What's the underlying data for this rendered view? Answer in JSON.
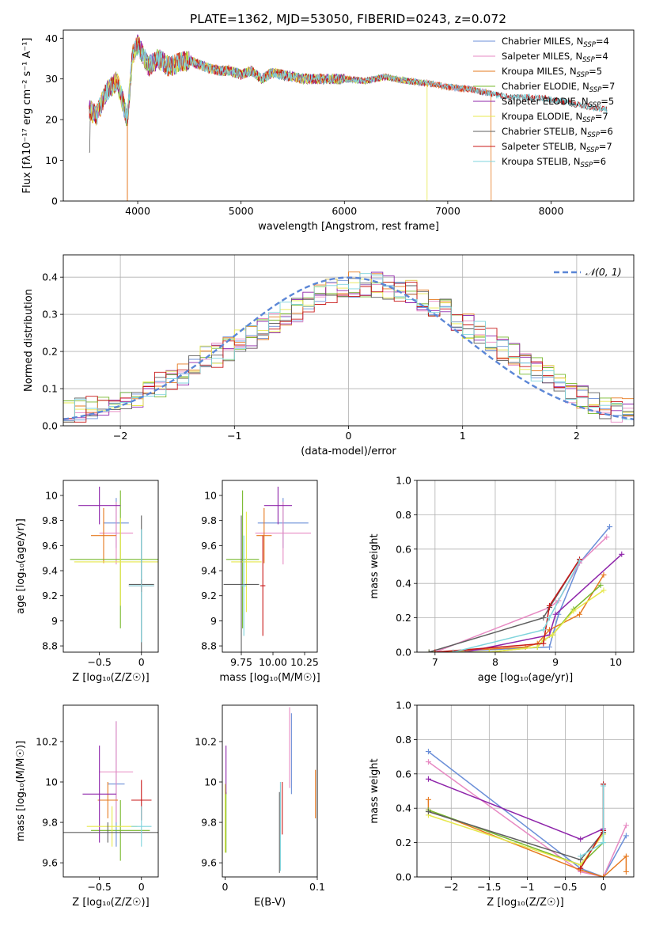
{
  "figure_title": "PLATE=1362, MJD=53050, FIBERID=0243, z=0.072",
  "colors": {
    "Chabrier MILES": "#6b8fd8",
    "Salpeter MILES": "#e78ac3",
    "Kroupa MILES": "#e6791f",
    "Chabrier ELODIE": "#77b82c",
    "Salpeter ELODIE": "#8e24aa",
    "Kroupa ELODIE": "#e7e84c",
    "Chabrier STELIB": "#5f5f5f",
    "Salpeter STELIB": "#c81818",
    "Kroupa STELIB": "#7fd4dc",
    "normal_curve": "#5b86d6"
  },
  "chart_data": [
    {
      "id": "spectrum",
      "type": "line",
      "xlabel": "wavelength [Angstrom, rest frame]",
      "ylabel": "Flux [fλ10⁻¹⁷ erg cm⁻² s⁻¹ A⁻¹]",
      "xlim": [
        3280,
        8800
      ],
      "ylim": [
        0,
        42
      ],
      "xticks": [
        4000,
        5000,
        6000,
        7000,
        8000
      ],
      "yticks": [
        0,
        10,
        20,
        30,
        40
      ],
      "grid": false,
      "legend_position": "top-right",
      "legend": [
        {
          "name": "Chabrier MILES",
          "nssp": "4"
        },
        {
          "name": "Salpeter MILES",
          "nssp": "4"
        },
        {
          "name": "Kroupa MILES",
          "nssp": "5"
        },
        {
          "name": "Chabrier ELODIE",
          "nssp": "7"
        },
        {
          "name": "Salpeter ELODIE",
          "nssp": "5"
        },
        {
          "name": "Kroupa ELODIE",
          "nssp": "7"
        },
        {
          "name": "Chabrier STELIB",
          "nssp": "6"
        },
        {
          "name": "Salpeter STELIB",
          "nssp": "7"
        },
        {
          "name": "Kroupa STELIB",
          "nssp": "6"
        }
      ],
      "data_wavelength": [
        3530,
        3600,
        3700,
        3800,
        3850,
        3900,
        3950,
        4000,
        4050,
        4100,
        4200,
        4300,
        4400,
        4500,
        4600,
        4700,
        4800,
        4900,
        5000,
        5100,
        5200,
        5300,
        5400,
        5500,
        5600,
        5800,
        6000,
        6200,
        6400,
        6600,
        6800,
        7000,
        7200,
        7400,
        7600,
        7800,
        8000,
        8200,
        8400,
        8540
      ],
      "data_flux": [
        22.5,
        21,
        27,
        29.5,
        25,
        20,
        36,
        38.5,
        36,
        33,
        35,
        33,
        34,
        34.5,
        33.5,
        32.5,
        32,
        32,
        31,
        32,
        30,
        31.5,
        31,
        30.5,
        30,
        30,
        30,
        29.5,
        30.5,
        29.5,
        29,
        28,
        27.5,
        26.5,
        25.5,
        25.5,
        25,
        24,
        23,
        22.5
      ]
    },
    {
      "id": "residuals",
      "type": "step",
      "xlabel": "(data-model)/error",
      "ylabel": "Normed distribution",
      "xlim": [
        -2.5,
        2.5
      ],
      "ylim": [
        0,
        0.46
      ],
      "xticks": [
        -2,
        -1,
        0,
        1,
        2
      ],
      "yticks": [
        0.0,
        0.1,
        0.2,
        0.3,
        0.4
      ],
      "grid": true,
      "legend_position": "top-right",
      "normal_label": "𝒩(0, 1)",
      "bin_edges_start": -2.5,
      "bin_width": 0.1,
      "reference_hist": [
        0.035,
        0.04,
        0.045,
        0.055,
        0.06,
        0.07,
        0.08,
        0.09,
        0.11,
        0.12,
        0.14,
        0.16,
        0.18,
        0.19,
        0.21,
        0.23,
        0.24,
        0.26,
        0.28,
        0.3,
        0.31,
        0.33,
        0.35,
        0.36,
        0.37,
        0.38,
        0.38,
        0.38,
        0.37,
        0.37,
        0.36,
        0.34,
        0.33,
        0.31,
        0.29,
        0.27,
        0.25,
        0.23,
        0.21,
        0.19,
        0.17,
        0.15,
        0.13,
        0.11,
        0.09,
        0.08,
        0.06,
        0.05,
        0.04,
        0.04
      ]
    },
    {
      "id": "age-vs-Z",
      "type": "errorbar",
      "xlabel": "Z [log₁₀(Z/Z☉)]",
      "ylabel": "age  [log₁₀(age/yr)]",
      "xlim": [
        -0.93,
        0.2
      ],
      "ylim": [
        8.75,
        10.12
      ],
      "xticks": [
        -0.5,
        0.0
      ],
      "yticks": [
        8.8,
        9.0,
        9.2,
        9.4,
        9.6,
        9.8,
        10.0
      ],
      "grid": false,
      "points": [
        {
          "series": "Chabrier MILES",
          "x": -0.3,
          "xerr": 0.15,
          "y": 9.78,
          "yerr": 0.2
        },
        {
          "series": "Salpeter MILES",
          "x": -0.3,
          "xerr": 0.2,
          "y": 9.7,
          "yerr": 0.25
        },
        {
          "series": "Kroupa MILES",
          "x": -0.45,
          "xerr": 0.15,
          "y": 9.68,
          "yerr": 0.22
        },
        {
          "series": "Chabrier ELODIE",
          "x": -0.25,
          "xerr": 0.6,
          "y": 9.49,
          "yerr": 0.55
        },
        {
          "series": "Salpeter ELODIE",
          "x": -0.5,
          "xerr": 0.25,
          "y": 9.92,
          "yerr": 0.15
        },
        {
          "series": "Kroupa ELODIE",
          "x": -0.25,
          "xerr": 0.55,
          "y": 9.47,
          "yerr": 0.35
        },
        {
          "series": "Chabrier STELIB",
          "x": 0.0,
          "xerr": 0.15,
          "y": 9.29,
          "yerr": 0.55
        },
        {
          "series": "Salpeter STELIB",
          "x": 0.0,
          "xerr": 0.15,
          "y": 9.28,
          "yerr": 0.05
        },
        {
          "series": "Kroupa STELIB",
          "x": 0.0,
          "xerr": 0.15,
          "y": 9.28,
          "yerr": 0.45
        }
      ]
    },
    {
      "id": "age-vs-mass",
      "type": "errorbar",
      "xlabel": "mass [log₁₀(M/M☉)]",
      "ylabel": "",
      "xlim": [
        9.6,
        10.35
      ],
      "ylim": [
        8.75,
        10.12
      ],
      "xticks": [
        9.75,
        10.0,
        10.25
      ],
      "xtick_labels": [
        "9.75",
        "10.00",
        "10.25"
      ],
      "yticks": [
        8.8,
        9.0,
        9.2,
        9.4,
        9.6,
        9.8,
        10.0
      ],
      "grid": false,
      "points": [
        {
          "series": "Chabrier MILES",
          "x": 10.08,
          "xerr": 0.2,
          "y": 9.78,
          "yerr": 0.2
        },
        {
          "series": "Salpeter MILES",
          "x": 10.08,
          "xerr": 0.22,
          "y": 9.7,
          "yerr": 0.25
        },
        {
          "series": "Kroupa MILES",
          "x": 9.93,
          "xerr": 0.06,
          "y": 9.68,
          "yerr": 0.22
        },
        {
          "series": "Chabrier ELODIE",
          "x": 9.76,
          "xerr": 0.13,
          "y": 9.49,
          "yerr": 0.55
        },
        {
          "series": "Salpeter ELODIE",
          "x": 10.04,
          "xerr": 0.11,
          "y": 9.92,
          "yerr": 0.15
        },
        {
          "series": "Kroupa ELODIE",
          "x": 9.79,
          "xerr": 0.12,
          "y": 9.47,
          "yerr": 0.4
        },
        {
          "series": "Chabrier STELIB",
          "x": 9.75,
          "xerr": 0.14,
          "y": 9.29,
          "yerr": 0.55
        },
        {
          "series": "Salpeter STELIB",
          "x": 9.92,
          "xerr": 0.02,
          "y": 9.28,
          "yerr": 0.4
        },
        {
          "series": "Kroupa STELIB",
          "x": 9.77,
          "xerr": 0.02,
          "y": 9.28,
          "yerr": 0.4
        }
      ]
    },
    {
      "id": "massweight-vs-age",
      "type": "line",
      "xlabel": "age  [log₁₀(age/yr)]",
      "ylabel": "mass weight",
      "xlim": [
        6.7,
        10.3
      ],
      "ylim": [
        0,
        1.0
      ],
      "xticks": [
        7,
        8,
        9,
        10
      ],
      "yticks": [
        0.0,
        0.2,
        0.4,
        0.6,
        0.8,
        1.0
      ],
      "grid": true,
      "series": [
        {
          "name": "Chabrier MILES",
          "x": [
            7.0,
            8.9,
            9.05,
            9.4,
            9.9
          ],
          "y": [
            0.0,
            0.03,
            0.22,
            0.52,
            0.73
          ]
        },
        {
          "name": "Salpeter MILES",
          "x": [
            7.0,
            8.9,
            9.05,
            9.4,
            9.85
          ],
          "y": [
            0.0,
            0.26,
            0.3,
            0.52,
            0.67
          ]
        },
        {
          "name": "Kroupa MILES",
          "x": [
            7.0,
            8.5,
            8.7,
            8.9,
            9.4,
            9.8
          ],
          "y": [
            0.0,
            0.03,
            0.05,
            0.13,
            0.22,
            0.45
          ]
        },
        {
          "name": "Chabrier ELODIE",
          "x": [
            6.9,
            7.9,
            8.7,
            8.8,
            8.95,
            9.3,
            9.75
          ],
          "y": [
            0.0,
            0.0,
            0.03,
            0.07,
            0.1,
            0.25,
            0.39
          ]
        },
        {
          "name": "Salpeter ELODIE",
          "x": [
            7.5,
            8.9,
            9.0,
            10.1
          ],
          "y": [
            0.0,
            0.1,
            0.22,
            0.57
          ]
        },
        {
          "name": "Kroupa ELODIE",
          "x": [
            6.9,
            7.9,
            8.7,
            8.8,
            8.95,
            9.3,
            9.8
          ],
          "y": [
            0.0,
            0.0,
            0.03,
            0.07,
            0.1,
            0.24,
            0.36
          ]
        },
        {
          "name": "Chabrier STELIB",
          "x": [
            6.9,
            8.8,
            8.9,
            9.4
          ],
          "y": [
            0.0,
            0.2,
            0.26,
            0.54
          ]
        },
        {
          "name": "Salpeter STELIB",
          "x": [
            7.0,
            8.8,
            8.9,
            9.4
          ],
          "y": [
            0.0,
            0.05,
            0.27,
            0.54
          ]
        },
        {
          "name": "Kroupa STELIB",
          "x": [
            7.3,
            8.8,
            8.9,
            9.4
          ],
          "y": [
            0.0,
            0.13,
            0.2,
            0.53
          ]
        }
      ]
    },
    {
      "id": "mass-vs-Z",
      "type": "errorbar",
      "xlabel": "Z [log₁₀(Z/Z☉)]",
      "ylabel": "mass [log₁₀(M/M☉)]",
      "xlim": [
        -0.93,
        0.2
      ],
      "ylim": [
        9.53,
        10.38
      ],
      "xticks": [
        -0.5,
        0.0
      ],
      "yticks": [
        9.6,
        9.8,
        10.0,
        10.2
      ],
      "grid": false,
      "points": [
        {
          "series": "Chabrier MILES",
          "x": -0.3,
          "xerr": 0.1,
          "y": 9.99,
          "yerr": 0.31
        },
        {
          "series": "Salpeter MILES",
          "x": -0.3,
          "xerr": 0.2,
          "y": 10.05,
          "yerr": 0.25
        },
        {
          "series": "Kroupa MILES",
          "x": -0.4,
          "xerr": 0.12,
          "y": 9.91,
          "yerr": 0.09
        },
        {
          "series": "Chabrier ELODIE",
          "x": -0.25,
          "xerr": 0.35,
          "y": 9.76,
          "yerr": 0.15
        },
        {
          "series": "Salpeter ELODIE",
          "x": -0.5,
          "xerr": 0.2,
          "y": 9.94,
          "yerr": 0.24
        },
        {
          "series": "Kroupa ELODIE",
          "x": -0.35,
          "xerr": 0.3,
          "y": 9.78,
          "yerr": 0.1
        },
        {
          "series": "Chabrier STELIB",
          "x": -0.4,
          "xerr": 0.6,
          "y": 9.75,
          "yerr": 0.05
        },
        {
          "series": "Salpeter STELIB",
          "x": 0.0,
          "xerr": 0.12,
          "y": 9.91,
          "yerr": 0.1
        },
        {
          "series": "Kroupa STELIB",
          "x": 0.0,
          "xerr": 0.12,
          "y": 9.78,
          "yerr": 0.1
        }
      ]
    },
    {
      "id": "mass-vs-EBV",
      "type": "errorbar",
      "xlabel": "E(B-V)",
      "ylabel": "",
      "xlim": [
        -0.003,
        0.1
      ],
      "ylim": [
        9.53,
        10.38
      ],
      "xticks": [
        0.0,
        0.1
      ],
      "yticks": [
        9.6,
        9.8,
        10.0,
        10.2
      ],
      "grid": false,
      "points": [
        {
          "series": "Chabrier MILES",
          "x": 0.072,
          "y": 10.14,
          "yerr": 0.2
        },
        {
          "series": "Salpeter MILES",
          "x": 0.07,
          "y": 10.17,
          "yerr": 0.2
        },
        {
          "series": "Kroupa MILES",
          "x": 0.098,
          "y": 9.94,
          "yerr": 0.12
        },
        {
          "series": "Chabrier ELODIE",
          "x": 0.001,
          "y": 9.8,
          "yerr": 0.15
        },
        {
          "series": "Salpeter ELODIE",
          "x": 0.001,
          "y": 10.06,
          "yerr": 0.12
        },
        {
          "series": "Kroupa ELODIE",
          "x": 0.0,
          "y": 9.82,
          "yerr": 0.17
        },
        {
          "series": "Chabrier STELIB",
          "x": 0.059,
          "y": 9.75,
          "yerr": 0.2
        },
        {
          "series": "Salpeter STELIB",
          "x": 0.062,
          "y": 9.87,
          "yerr": 0.13
        },
        {
          "series": "Kroupa STELIB",
          "x": 0.06,
          "y": 9.78,
          "yerr": 0.22
        }
      ]
    },
    {
      "id": "massweight-vs-Z",
      "type": "line",
      "xlabel": "Z [log₁₀(Z/Z☉)]",
      "ylabel": "mass weight",
      "xlim": [
        -2.45,
        0.4
      ],
      "ylim": [
        0,
        1.0
      ],
      "xticks": [
        -2.0,
        -1.5,
        -1.0,
        -0.5,
        0.0
      ],
      "yticks": [
        0.0,
        0.2,
        0.4,
        0.6,
        0.8,
        1.0
      ],
      "grid": true,
      "series": [
        {
          "name": "Chabrier MILES",
          "x": [
            -2.3,
            -0.3,
            0.0,
            0.3
          ],
          "y": [
            0.73,
            0.05,
            0.0,
            0.24
          ]
        },
        {
          "name": "Salpeter MILES",
          "x": [
            -2.3,
            -0.3,
            0.0,
            0.3
          ],
          "y": [
            0.67,
            0.03,
            0.0,
            0.3
          ]
        },
        {
          "name": "Kroupa MILES",
          "x": [
            -2.3,
            -2.3,
            -0.3,
            0.0,
            0.3,
            0.3
          ],
          "y": [
            0.45,
            0.39,
            0.04,
            0.0,
            0.12,
            0.03
          ]
        },
        {
          "name": "Chabrier ELODIE",
          "x": [
            -2.3,
            -0.3,
            0.0,
            0.0
          ],
          "y": [
            0.39,
            0.07,
            0.2,
            0.25
          ]
        },
        {
          "name": "Salpeter ELODIE",
          "x": [
            -2.3,
            -0.3,
            0.0
          ],
          "y": [
            0.57,
            0.22,
            0.28
          ]
        },
        {
          "name": "Kroupa ELODIE",
          "x": [
            -2.3,
            -0.3,
            0.0
          ],
          "y": [
            0.36,
            0.07,
            0.25
          ]
        },
        {
          "name": "Chabrier STELIB",
          "x": [
            -2.3,
            -0.3,
            0.0,
            0.0
          ],
          "y": [
            0.38,
            0.1,
            0.26,
            0.54
          ]
        },
        {
          "name": "Salpeter STELIB",
          "x": [
            -0.3,
            0.0,
            0.0
          ],
          "y": [
            0.05,
            0.27,
            0.54
          ]
        },
        {
          "name": "Kroupa STELIB",
          "x": [
            -0.3,
            0.0,
            0.0
          ],
          "y": [
            0.12,
            0.2,
            0.53
          ]
        }
      ]
    }
  ]
}
